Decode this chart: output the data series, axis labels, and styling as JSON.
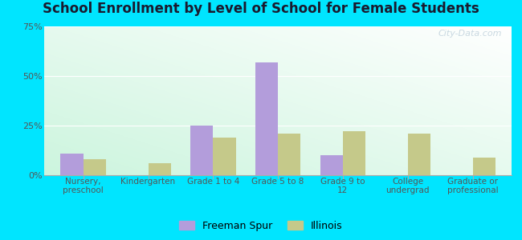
{
  "title": "School Enrollment by Level of School for Female Students",
  "categories": [
    "Nursery,\npreschool",
    "Kindergarten",
    "Grade 1 to 4",
    "Grade 5 to 8",
    "Grade 9 to\n12",
    "College\nundergrad",
    "Graduate or\nprofessional"
  ],
  "freeman_spur": [
    11,
    0,
    25,
    57,
    10,
    0,
    0
  ],
  "illinois": [
    8,
    6,
    19,
    21,
    22,
    21,
    9
  ],
  "freeman_color": "#b39ddb",
  "illinois_color": "#c5c98a",
  "bg_outer": "#00e5ff",
  "title_color": "#1a1a2e",
  "tick_color": "#555555",
  "ylim": [
    0,
    75
  ],
  "yticks": [
    0,
    25,
    50,
    75
  ],
  "ytick_labels": [
    "0%",
    "25%",
    "50%",
    "75%"
  ],
  "bar_width": 0.35,
  "legend_labels": [
    "Freeman Spur",
    "Illinois"
  ],
  "watermark": "City-Data.com"
}
